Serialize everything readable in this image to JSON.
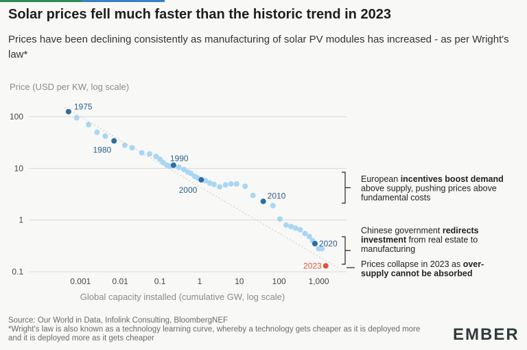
{
  "title": "Solar prices fell much faster than the historic trend in 2023",
  "subtitle": "Prices have been declining consistently as manufacturing of solar PV modules has increased - as per Wright's law*",
  "source_line": "Source: Our World in Data, Infolink Consulting, BloombergNEF",
  "footnote_line": "*Wright's law is also known as a technology learning curve, whereby a technology gets cheaper as it is deployed more and it is deployed more as it gets cheaper",
  "logo": "EMBER",
  "colors": {
    "light_point": "#a9d6f3",
    "dark_point": "#2d6ea3",
    "highlight_2023": "#e0533f",
    "trend": "#c8c8c8",
    "grid": "#d9d9d9"
  },
  "chart_data": {
    "type": "scatter",
    "title": "Solar prices fell much faster than the historic trend in 2023",
    "xlabel": "Global capacity installed (cumulative GW, log scale)",
    "ylabel": "Price (USD per KW, log scale)",
    "xscale": "log",
    "yscale": "log",
    "xlim": [
      5e-05,
      5000
    ],
    "ylim": [
      0.1,
      100
    ],
    "x_ticks": [
      0.001,
      0.01,
      0.1,
      1,
      10,
      100,
      1000
    ],
    "x_tick_labels": [
      "0.001",
      "0.01",
      "0.1",
      "1",
      "10",
      "100",
      "1,000"
    ],
    "y_ticks": [
      0.1,
      1,
      10,
      100
    ],
    "y_tick_labels": [
      "0.1",
      "1",
      "10",
      "100"
    ],
    "trend_line": {
      "from": [
        0.0004,
        150
      ],
      "to": [
        3000,
        0.12
      ]
    },
    "points": [
      [
        0.0005,
        125
      ],
      [
        0.0008,
        95
      ],
      [
        0.0016,
        70
      ],
      [
        0.0026,
        50
      ],
      [
        0.0042,
        42
      ],
      [
        0.007,
        34
      ],
      [
        0.013,
        28
      ],
      [
        0.02,
        25
      ],
      [
        0.035,
        20
      ],
      [
        0.055,
        19
      ],
      [
        0.08,
        17
      ],
      [
        0.1,
        15
      ],
      [
        0.12,
        13
      ],
      [
        0.15,
        11.5
      ],
      [
        0.18,
        11
      ],
      [
        0.22,
        11.5
      ],
      [
        0.3,
        10.5
      ],
      [
        0.4,
        9.5
      ],
      [
        0.5,
        8.5
      ],
      [
        0.6,
        8
      ],
      [
        0.75,
        7
      ],
      [
        0.9,
        6.5
      ],
      [
        1.1,
        6
      ],
      [
        1.4,
        5.8
      ],
      [
        1.8,
        5.2
      ],
      [
        2.3,
        4.9
      ],
      [
        3.2,
        4.4
      ],
      [
        4.5,
        4.8
      ],
      [
        6.2,
        5
      ],
      [
        8.5,
        5
      ],
      [
        14,
        4.5
      ],
      [
        22,
        3
      ],
      [
        40,
        2.3
      ],
      [
        70,
        1.9
      ],
      [
        105,
        1.05
      ],
      [
        150,
        0.8
      ],
      [
        200,
        0.75
      ],
      [
        260,
        0.7
      ],
      [
        340,
        0.65
      ],
      [
        450,
        0.55
      ],
      [
        580,
        0.48
      ],
      [
        700,
        0.4
      ],
      [
        800,
        0.35
      ],
      [
        1000,
        0.28
      ],
      [
        1200,
        0.28
      ]
    ],
    "highlighted": [
      {
        "label": "1975",
        "x": 0.0005,
        "y": 125
      },
      {
        "label": "1980",
        "x": 0.007,
        "y": 34
      },
      {
        "label": "1990",
        "x": 0.22,
        "y": 11.5
      },
      {
        "label": "2000",
        "x": 1.1,
        "y": 6
      },
      {
        "label": "2010",
        "x": 40,
        "y": 2.3
      },
      {
        "label": "2020",
        "x": 800,
        "y": 0.35
      },
      {
        "label": "2023",
        "x": 1500,
        "y": 0.13
      }
    ],
    "annotations": [
      {
        "name": "annotation-european",
        "lines": [
          [
            {
              "t": "European ",
              "b": false
            },
            {
              "t": "incentives boost demand",
              "b": true
            }
          ],
          [
            {
              "t": "above supply, pushing prices above",
              "b": false
            }
          ],
          [
            {
              "t": "fundamental costs",
              "b": false
            }
          ]
        ]
      },
      {
        "name": "annotation-chinese",
        "lines": [
          [
            {
              "t": "Chinese government ",
              "b": false
            },
            {
              "t": "redirects",
              "b": true
            }
          ],
          [
            {
              "t": "investment",
              "b": true
            },
            {
              "t": " from real estate to",
              "b": false
            }
          ],
          [
            {
              "t": "manufacturing",
              "b": false
            }
          ]
        ]
      },
      {
        "name": "annotation-collapse",
        "lines": [
          [
            {
              "t": "Prices collapse in 2023 as ",
              "b": false
            },
            {
              "t": "over-",
              "b": true
            }
          ],
          [
            {
              "t": "supply cannot be absorbed",
              "b": true
            }
          ]
        ]
      }
    ]
  }
}
